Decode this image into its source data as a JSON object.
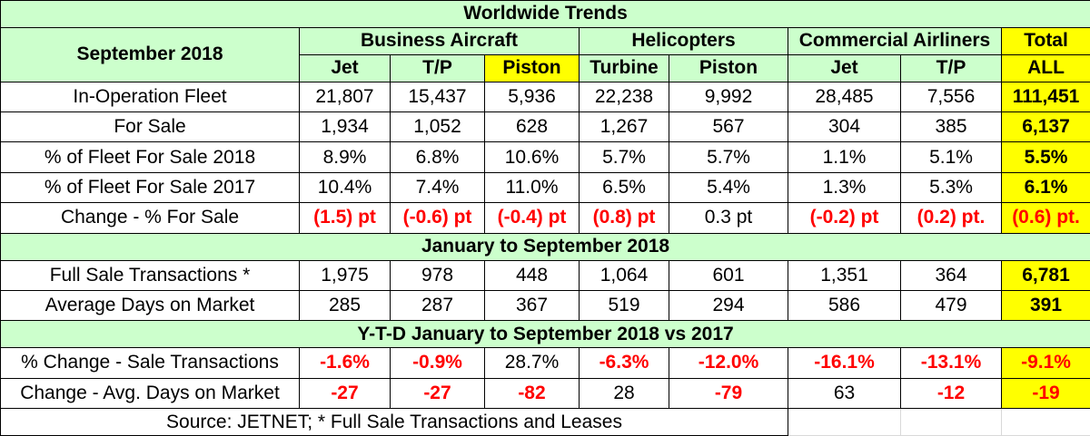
{
  "chart_data": {
    "type": "table",
    "title": "Worldwide Trends",
    "period_label": "September 2018",
    "groups": [
      {
        "name": "Business Aircraft",
        "columns": [
          "Jet",
          "T/P",
          "Piston"
        ]
      },
      {
        "name": "Helicopters",
        "columns": [
          "Turbine",
          "Piston"
        ]
      },
      {
        "name": "Commercial Airliners",
        "columns": [
          "Jet",
          "T/P"
        ]
      },
      {
        "name": "Total",
        "columns": [
          "ALL"
        ]
      }
    ],
    "sections": [
      {
        "title": "",
        "rows": [
          {
            "label": "In-Operation Fleet",
            "values": [
              "21,807",
              "15,437",
              "5,936",
              "22,238",
              "9,992",
              "28,485",
              "7,556",
              "111,451"
            ]
          },
          {
            "label": "For Sale",
            "values": [
              "1,934",
              "1,052",
              "628",
              "1,267",
              "567",
              "304",
              "385",
              "6,137"
            ]
          },
          {
            "label": "% of Fleet For Sale 2018",
            "values": [
              "8.9%",
              "6.8%",
              "10.6%",
              "5.7%",
              "5.7%",
              "1.1%",
              "5.1%",
              "5.5%"
            ]
          },
          {
            "label": "% of Fleet For Sale 2017",
            "values": [
              "10.4%",
              "7.4%",
              "11.0%",
              "6.5%",
              "5.4%",
              "1.3%",
              "5.3%",
              "6.1%"
            ]
          },
          {
            "label": "Change - % For Sale",
            "values": [
              "(1.5) pt",
              "(-0.6) pt",
              "(-0.4) pt",
              "(0.8) pt",
              "0.3 pt",
              "(-0.2) pt",
              "(0.2) pt.",
              "(0.6) pt."
            ]
          }
        ]
      },
      {
        "title": "January to September 2018",
        "rows": [
          {
            "label": "Full Sale Transactions *",
            "values": [
              "1,975",
              "978",
              "448",
              "1,064",
              "601",
              "1,351",
              "364",
              "6,781"
            ]
          },
          {
            "label": "Average Days on Market",
            "values": [
              "285",
              "287",
              "367",
              "519",
              "294",
              "586",
              "479",
              "391"
            ]
          }
        ]
      },
      {
        "title": "Y-T-D January to September 2018 vs 2017",
        "rows": [
          {
            "label": "% Change  - Sale Transactions",
            "values": [
              "-1.6%",
              "-0.9%",
              "28.7%",
              "-6.3%",
              "-12.0%",
              "-16.1%",
              "-13.1%",
              "-9.1%"
            ]
          },
          {
            "label": "Change -  Avg. Days on Market",
            "values": [
              "-27",
              "-27",
              "-82",
              "28",
              "-79",
              "63",
              "-12",
              "-19"
            ]
          }
        ]
      }
    ],
    "source": "Source: JETNET; * Full Sale Transactions and Leases",
    "colors": {
      "header_bg": "#ccffcc",
      "highlight": "#ffff00",
      "negative": "#ff0000"
    }
  }
}
